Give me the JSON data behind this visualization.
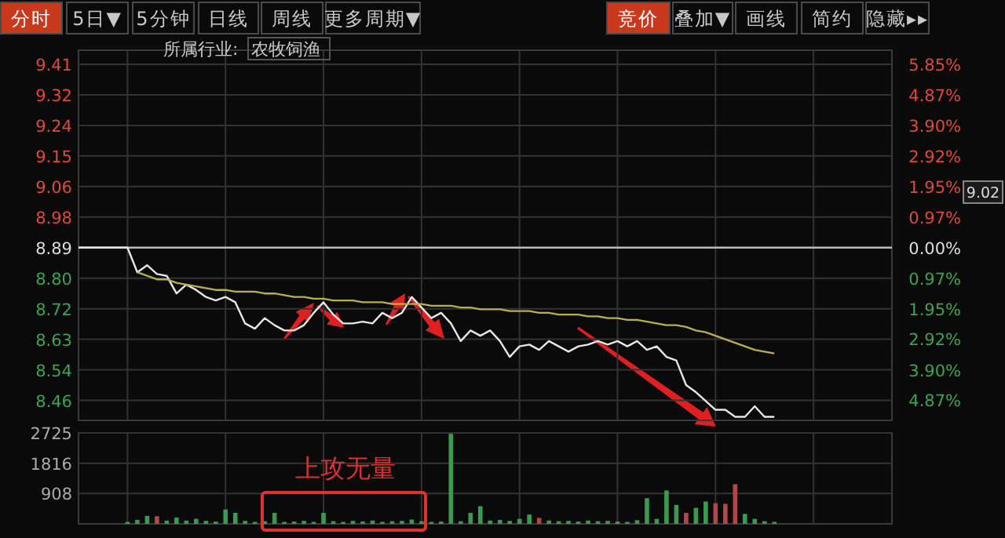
{
  "chart_data": [
    {
      "type": "line",
      "categories": [
        null,
        null,
        null,
        null,
        null,
        null,
        null,
        null,
        null,
        null,
        null,
        null,
        null,
        null,
        null,
        null,
        null,
        null,
        null,
        null,
        null,
        null,
        null,
        null,
        null,
        null,
        null,
        null,
        null,
        null,
        null,
        null,
        null,
        null,
        null,
        null,
        null,
        null,
        null,
        null,
        null,
        null,
        null,
        null,
        null,
        null,
        null,
        null,
        null,
        null,
        null,
        null,
        null,
        null,
        null,
        null,
        null,
        null,
        null,
        null,
        null,
        null,
        null,
        null,
        null,
        null,
        null,
        null,
        null,
        null,
        null,
        null,
        null,
        null,
        null,
        null,
        null,
        null,
        null,
        null,
        null,
        null,
        null,
        null
      ],
      "series": [
        {
          "color": "#e6e6e6",
          "values": [
            8.89,
            8.89,
            8.89,
            8.89,
            8.89,
            8.89,
            8.82,
            8.84,
            8.815,
            8.81,
            8.76,
            8.785,
            8.77,
            8.75,
            8.74,
            8.75,
            8.735,
            8.675,
            8.66,
            8.69,
            8.67,
            8.655,
            8.655,
            8.67,
            8.705,
            8.735,
            8.7,
            8.675,
            8.675,
            8.68,
            8.675,
            8.705,
            8.69,
            8.705,
            8.75,
            8.72,
            8.69,
            8.705,
            8.675,
            8.625,
            8.655,
            8.64,
            8.655,
            8.625,
            8.58,
            8.61,
            8.615,
            8.6,
            8.625,
            8.61,
            8.595,
            8.61,
            8.615,
            8.625,
            8.615,
            8.625,
            8.61,
            8.625,
            8.6,
            8.61,
            8.58,
            8.57,
            8.5,
            8.48,
            8.455,
            8.43,
            8.43,
            8.41,
            8.41,
            8.44,
            8.41,
            8.41,
            null,
            null,
            null,
            null,
            null,
            null,
            null,
            null,
            null,
            null,
            null,
            null
          ]
        },
        {
          "color": "#b8b048",
          "values": [
            null,
            null,
            null,
            null,
            null,
            null,
            8.82,
            8.81,
            8.8,
            8.8,
            8.79,
            8.785,
            8.78,
            8.775,
            8.77,
            8.77,
            8.765,
            8.765,
            8.765,
            8.76,
            8.76,
            8.755,
            8.75,
            8.75,
            8.745,
            8.745,
            8.74,
            8.74,
            8.74,
            8.735,
            8.735,
            8.735,
            8.73,
            8.73,
            8.73,
            8.73,
            8.725,
            8.725,
            8.725,
            8.72,
            8.72,
            8.715,
            8.715,
            8.715,
            8.71,
            8.71,
            8.71,
            8.705,
            8.705,
            8.7,
            8.7,
            8.7,
            8.695,
            8.695,
            8.69,
            8.69,
            8.685,
            8.685,
            8.68,
            8.675,
            8.67,
            8.67,
            8.665,
            8.655,
            8.65,
            8.64,
            8.63,
            8.62,
            8.61,
            8.6,
            8.595,
            8.59,
            null,
            null,
            null,
            null,
            null,
            null,
            null,
            null,
            null,
            null,
            null,
            null
          ]
        }
      ],
      "ylim": [
        8.4,
        9.45
      ],
      "yticks": [
        {
          "value": 8.4567,
          "label": "8.46"
        },
        {
          "value": 8.5433,
          "label": "8.54"
        },
        {
          "value": 8.63,
          "label": "8.63"
        },
        {
          "value": 8.7167,
          "label": "8.72"
        },
        {
          "value": 8.8033,
          "label": "8.80"
        },
        {
          "value": 8.89,
          "label": "8.89"
        },
        {
          "value": 8.9767,
          "label": "8.98"
        },
        {
          "value": 9.0633,
          "label": "9.06"
        },
        {
          "value": 9.15,
          "label": "9.15"
        },
        {
          "value": 9.2367,
          "label": "9.24"
        },
        {
          "value": 9.3233,
          "label": "9.32"
        },
        {
          "value": 9.41,
          "label": "9.41"
        }
      ],
      "y2lim": [
        -5.51,
        6.3
      ],
      "y2ticks": [
        {
          "value": -4.87,
          "label": "4.87%"
        },
        {
          "value": -3.9,
          "label": "3.90%"
        },
        {
          "value": -2.92,
          "label": "2.92%"
        },
        {
          "value": -1.95,
          "label": "1.95%"
        },
        {
          "value": -0.97,
          "label": "0.97%"
        },
        {
          "value": 0,
          "label": "0.00%"
        },
        {
          "value": 0.97,
          "label": "0.97%"
        },
        {
          "value": 1.95,
          "label": "1.95%"
        },
        {
          "value": 2.92,
          "label": "2.92%"
        },
        {
          "value": 3.9,
          "label": "3.90%"
        },
        {
          "value": 4.87,
          "label": "4.87%"
        },
        {
          "value": 5.85,
          "label": "5.85%"
        }
      ],
      "ref_lines": [
        {
          "axis": "y",
          "value": 8.89,
          "color": "#bbbbbb"
        }
      ],
      "grid": true,
      "annotations": [
        "分时",
        "5日▼",
        "5分钟",
        "日线",
        "周线",
        "更多周期▼",
        "竞价",
        "叠加▼",
        "画线",
        "简约",
        "隐藏▸▸",
        "所属行业:",
        "农牧饲渔",
        "9.02"
      ]
    },
    {
      "type": "bar",
      "categories": [
        null,
        null,
        null,
        null,
        null,
        null,
        null,
        null,
        null,
        null,
        null,
        null,
        null,
        null,
        null,
        null,
        null,
        null,
        null,
        null,
        null,
        null,
        null,
        null,
        null,
        null,
        null,
        null,
        null,
        null,
        null,
        null,
        null,
        null,
        null,
        null,
        null,
        null,
        null,
        null,
        null,
        null,
        null,
        null,
        null,
        null,
        null,
        null,
        null,
        null,
        null,
        null,
        null,
        null,
        null,
        null,
        null,
        null,
        null,
        null,
        null,
        null,
        null,
        null,
        null,
        null,
        null,
        null,
        null,
        null,
        null,
        null,
        null,
        null,
        null,
        null,
        null,
        null,
        null,
        null,
        null,
        null,
        null,
        null
      ],
      "values": [
        null,
        null,
        null,
        null,
        null,
        60,
        120,
        240,
        230,
        100,
        190,
        100,
        150,
        90,
        70,
        430,
        330,
        90,
        60,
        80,
        330,
        60,
        70,
        90,
        60,
        330,
        80,
        60,
        90,
        70,
        100,
        60,
        80,
        90,
        130,
        80,
        60,
        70,
        2700,
        80,
        330,
        530,
        100,
        120,
        90,
        150,
        280,
        180,
        100,
        80,
        90,
        70,
        100,
        80,
        90,
        70,
        60,
        110,
        770,
        150,
        1000,
        570,
        330,
        480,
        670,
        620,
        600,
        1190,
        300,
        150,
        80,
        60,
        null,
        null,
        null,
        null,
        null,
        null,
        null,
        null,
        null,
        null,
        null,
        null
      ],
      "colors": [
        "#3a9a50",
        "#3a9a50",
        "#3a9a50",
        "#3a9a50",
        "#3a9a50",
        "#3a9a50",
        "#3a9a50",
        "#3a9a50",
        "#b04848",
        "#3a9a50",
        "#3a9a50",
        "#3a9a50",
        "#3a9a50",
        "#3a9a50",
        "#3a9a50",
        "#3a9a50",
        "#3a9a50",
        "#3a9a50",
        "#3a9a50",
        "#3a9a50",
        "#3a9a50",
        "#3a9a50",
        "#3a9a50",
        "#3a9a50",
        "#3a9a50",
        "#3a9a50",
        "#3a9a50",
        "#3a9a50",
        "#3a9a50",
        "#3a9a50",
        "#3a9a50",
        "#3a9a50",
        "#3a9a50",
        "#3a9a50",
        "#3a9a50",
        "#3a9a50",
        "#3a9a50",
        "#3a9a50",
        "#3a9a50",
        "#3a9a50",
        "#3a9a50",
        "#3a9a50",
        "#3a9a50",
        "#3a9a50",
        "#3a9a50",
        "#3a9a50",
        "#3a9a50",
        "#b04848",
        "#3a9a50",
        "#3a9a50",
        "#3a9a50",
        "#3a9a50",
        "#3a9a50",
        "#3a9a50",
        "#3a9a50",
        "#3a9a50",
        "#3a9a50",
        "#3a9a50",
        "#3a9a50",
        "#3a9a50",
        "#3a9a50",
        "#3a9a50",
        "#b04848",
        "#3a9a50",
        "#3a9a50",
        "#b04848",
        "#b04848",
        "#b04848",
        "#3a9a50",
        "#3a9a50",
        "#3a9a50",
        "#3a9a50",
        "#3a9a50",
        "#3a9a50",
        "#3a9a50",
        "#3a9a50",
        "#3a9a50",
        "#3a9a50",
        "#3a9a50",
        "#3a9a50",
        "#3a9a50",
        "#3a9a50",
        "#3a9a50",
        "#3a9a50"
      ],
      "ylim": [
        0,
        2725
      ],
      "yticks": [
        908,
        1816,
        2725
      ],
      "grid": true,
      "annotations": [
        "上攻无量"
      ]
    }
  ]
}
